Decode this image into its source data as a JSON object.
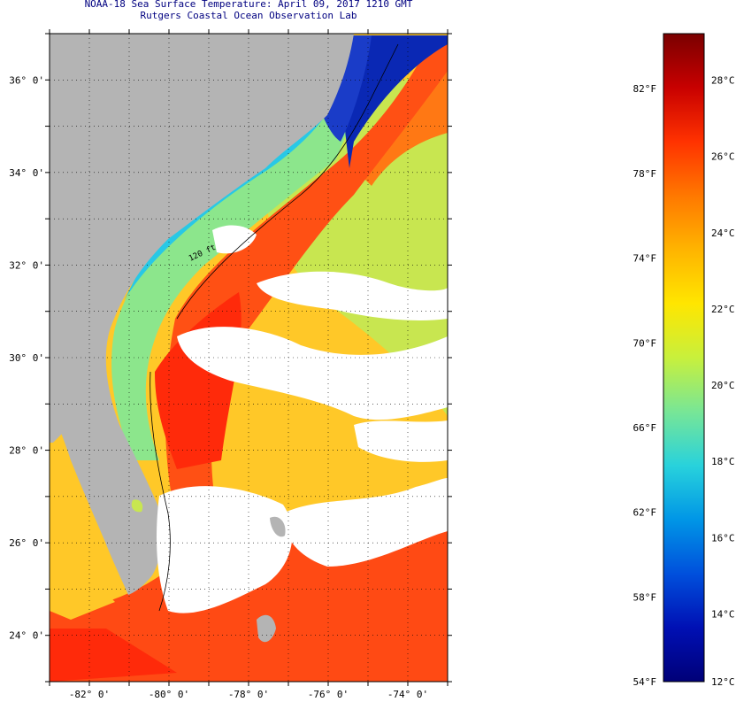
{
  "header": {
    "title": "NOAA-18 Sea Surface Temperature:  April 09, 2017 1210 GMT",
    "subtitle": "Rutgers Coastal Ocean Observation Lab"
  },
  "map": {
    "lat_range": [
      23.0,
      37.0
    ],
    "lon_range": [
      -83.0,
      -73.0
    ],
    "lat_ticks": [
      {
        "value": 36,
        "label": "36° 0'"
      },
      {
        "value": 34,
        "label": "34° 0'"
      },
      {
        "value": 32,
        "label": "32° 0'"
      },
      {
        "value": 30,
        "label": "30° 0'"
      },
      {
        "value": 28,
        "label": "28° 0'"
      },
      {
        "value": 26,
        "label": "26° 0'"
      },
      {
        "value": 24,
        "label": "24° 0'"
      }
    ],
    "lon_ticks": [
      {
        "value": -82,
        "label": "-82° 0'"
      },
      {
        "value": -80,
        "label": "-80° 0'"
      },
      {
        "value": -78,
        "label": "-78° 0'"
      },
      {
        "value": -76,
        "label": "-76° 0'"
      },
      {
        "value": -74,
        "label": "-74° 0'"
      }
    ],
    "contour_label": "120 ft",
    "colors": {
      "land": "#b4b4b4",
      "cloud": "#ffffff",
      "cold_shelf": "#1a3cc8",
      "nearshore": "#28c8e6",
      "shelf": "#8ce68c",
      "gulf_stream": "#ff5014",
      "warm_core": "#ff2a0a",
      "open_ocean": "#ffc828",
      "sargasso": "#c8e650"
    }
  },
  "colorbar": {
    "fahrenheit_labels": [
      "82°F",
      "78°F",
      "74°F",
      "70°F",
      "66°F",
      "62°F",
      "58°F",
      "54°F"
    ],
    "celsius_labels": [
      "28°C",
      "26°C",
      "24°C",
      "22°C",
      "20°C",
      "18°C",
      "16°C",
      "14°C",
      "12°C"
    ],
    "stops": [
      "#7a0000",
      "#c80000",
      "#ff3200",
      "#ff7800",
      "#ffb400",
      "#ffe600",
      "#c8f03c",
      "#78e696",
      "#28d2dc",
      "#0096e6",
      "#0050dc",
      "#0010b4",
      "#000078"
    ]
  }
}
